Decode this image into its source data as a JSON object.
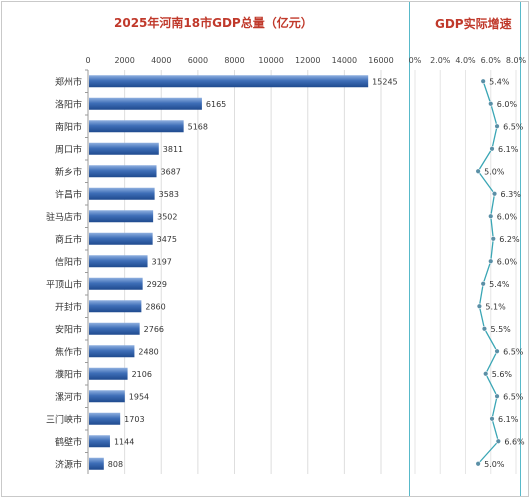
{
  "chart_data": [
    {
      "type": "bar",
      "orientation": "horizontal",
      "title": "2025年河南18市GDP总量（亿元）",
      "categories": [
        "郑州市",
        "洛阳市",
        "南阳市",
        "周口市",
        "新乡市",
        "许昌市",
        "驻马店市",
        "商丘市",
        "信阳市",
        "平顶山市",
        "开封市",
        "安阳市",
        "焦作市",
        "濮阳市",
        "漯河市",
        "三门峡市",
        "鹤壁市",
        "济源市"
      ],
      "values": [
        15245,
        6165,
        5168,
        3811,
        3687,
        3583,
        3502,
        3475,
        3197,
        2929,
        2860,
        2766,
        2480,
        2106,
        1954,
        1703,
        1144,
        808
      ],
      "x_ticks": [
        "0",
        "2000",
        "4000",
        "6000",
        "8000",
        "10000",
        "12000",
        "14000",
        "16000"
      ],
      "xlim": [
        0,
        16000
      ],
      "grid": true,
      "bar_color": "#2e5fa8"
    },
    {
      "type": "line",
      "title": "GDP实际增速",
      "values": [
        5.4,
        6.0,
        6.5,
        6.1,
        5.0,
        6.3,
        6.0,
        6.2,
        6.0,
        5.4,
        5.1,
        5.5,
        6.5,
        5.6,
        6.5,
        6.1,
        6.6,
        5.0
      ],
      "value_labels": [
        "5.4%",
        "6.0%",
        "6.5%",
        "6.1%",
        "5.0%",
        "6.3%",
        "6.0%",
        "6.2%",
        "6.0%",
        "5.4%",
        "5.1%",
        "5.5%",
        "6.5%",
        "5.6%",
        "6.5%",
        "6.1%",
        "6.6%",
        "5.0%"
      ],
      "x_ticks": [
        "0%",
        "2.0%",
        "4.0%",
        "6.0%",
        "8.0%"
      ],
      "xlim": [
        0,
        8
      ],
      "line_color": "#3aa6b5"
    }
  ]
}
